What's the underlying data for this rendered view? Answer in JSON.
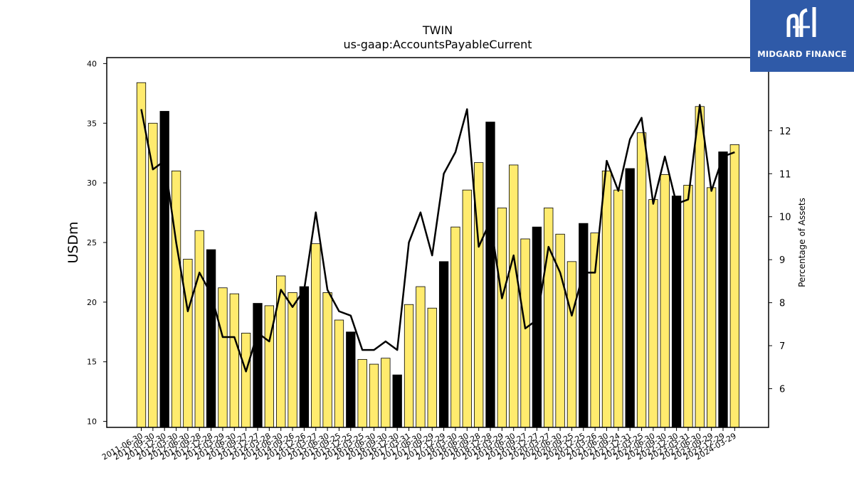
{
  "chart_data": {
    "type": "bar",
    "title": "TWIN",
    "subtitle": "us-gaap:AccountsPayableCurrent",
    "ylabel": "USDm",
    "ylabel_right": "Percentage of Assets",
    "ylim": [
      9.5,
      40.5
    ],
    "ylim_right": [
      5.1,
      13.7
    ],
    "yticks": [
      10,
      15,
      20,
      25,
      30,
      35,
      40
    ],
    "yticks_right": [
      6,
      7,
      8,
      9,
      10,
      11,
      12
    ],
    "categories": [
      "2011-06-30",
      "2011-09-30",
      "2011-12-30",
      "2012-03-30",
      "2012-06-30",
      "2012-09-28",
      "2012-12-28",
      "2013-03-29",
      "2013-06-30",
      "2013-09-27",
      "2013-12-27",
      "2014-03-28",
      "2014-06-30",
      "2014-09-26",
      "2014-12-26",
      "2015-03-27",
      "2015-06-30",
      "2015-09-25",
      "2015-12-25",
      "2016-03-25",
      "2016-06-30",
      "2016-09-30",
      "2016-12-30",
      "2017-03-31",
      "2017-06-30",
      "2017-09-29",
      "2017-12-29",
      "2018-03-30",
      "2018-06-30",
      "2018-09-28",
      "2018-12-28",
      "2019-03-29",
      "2019-06-30",
      "2019-09-27",
      "2019-12-27",
      "2020-03-27",
      "2020-06-30",
      "2020-09-25",
      "2020-12-25",
      "2021-03-26",
      "2021-06-30",
      "2021-09-24",
      "2021-12-31",
      "2022-03-25",
      "2022-06-30",
      "2022-09-30",
      "2022-12-30",
      "2023-03-31",
      "2023-06-30",
      "2023-09-29",
      "2023-12-29",
      "2024-03-29"
    ],
    "values": [
      38.4,
      35.0,
      36.0,
      31.0,
      23.6,
      26.0,
      24.4,
      21.2,
      20.7,
      17.4,
      19.9,
      19.7,
      22.2,
      20.8,
      21.3,
      24.9,
      20.8,
      18.5,
      17.5,
      15.2,
      14.8,
      15.3,
      13.9,
      19.8,
      21.3,
      19.5,
      23.4,
      26.3,
      29.4,
      31.7,
      35.1,
      27.9,
      31.5,
      25.3,
      26.3,
      27.9,
      25.7,
      23.4,
      26.6,
      25.8,
      31.0,
      29.4,
      31.2,
      34.2,
      28.6,
      30.7,
      28.9,
      29.8,
      36.4,
      29.6,
      32.6,
      33.2
    ],
    "highlight": [
      false,
      false,
      true,
      false,
      false,
      false,
      true,
      false,
      false,
      false,
      true,
      false,
      false,
      false,
      true,
      false,
      false,
      false,
      true,
      false,
      false,
      false,
      true,
      false,
      false,
      false,
      true,
      false,
      false,
      false,
      true,
      false,
      false,
      false,
      true,
      false,
      false,
      false,
      true,
      false,
      false,
      false,
      true,
      false,
      false,
      false,
      true,
      false,
      false,
      false,
      true,
      false
    ],
    "pct_assets": [
      12.5,
      11.1,
      11.3,
      9.4,
      7.8,
      8.7,
      8.2,
      7.2,
      7.2,
      6.4,
      7.3,
      7.1,
      8.3,
      7.9,
      8.3,
      10.1,
      8.3,
      7.8,
      7.7,
      6.9,
      6.9,
      7.1,
      6.9,
      9.4,
      10.1,
      9.1,
      11.0,
      11.5,
      12.5,
      9.3,
      9.9,
      8.1,
      9.1,
      7.4,
      7.6,
      9.3,
      8.7,
      7.7,
      8.7,
      8.7,
      11.3,
      10.6,
      11.8,
      12.3,
      10.3,
      11.4,
      10.3,
      10.4,
      12.6,
      10.6,
      11.4,
      11.5
    ],
    "colors": {
      "bar": "#ffeb6e",
      "bar_highlight": "#000000",
      "line": "#000000"
    },
    "grid": false
  },
  "logo": {
    "text": "MIDGARD FINANCE",
    "background": "#2f5aa8"
  }
}
